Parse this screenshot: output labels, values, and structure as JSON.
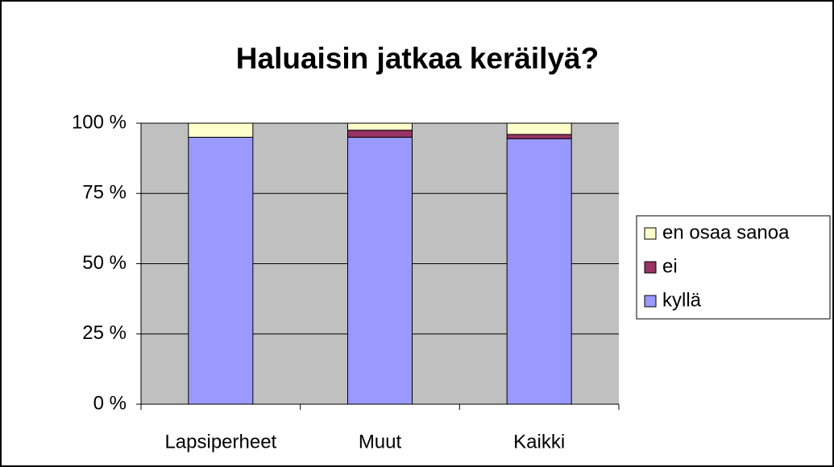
{
  "chart_data": {
    "type": "stacked_bar",
    "title": "Haluaisin jatkaa keräilyä?",
    "categories": [
      "Lapsiperheet",
      "Muut",
      "Kaikki"
    ],
    "series": [
      {
        "name": "kyllä",
        "color": "#9999ff",
        "values": [
          95,
          95,
          94.5
        ]
      },
      {
        "name": "ei",
        "color": "#993366",
        "values": [
          0,
          2.5,
          1.5
        ]
      },
      {
        "name": "en osaa sanoa",
        "color": "#ffffcc",
        "values": [
          5,
          2.5,
          4
        ]
      }
    ],
    "ylim": [
      0,
      100
    ],
    "yticks": [
      {
        "value": 0,
        "label": "0 %"
      },
      {
        "value": 25,
        "label": "25 %"
      },
      {
        "value": 50,
        "label": "50 %"
      },
      {
        "value": 75,
        "label": "75 %"
      },
      {
        "value": 100,
        "label": "100 %"
      }
    ],
    "grid": true,
    "legend": "right",
    "plot_background": "#c0c0c0"
  }
}
